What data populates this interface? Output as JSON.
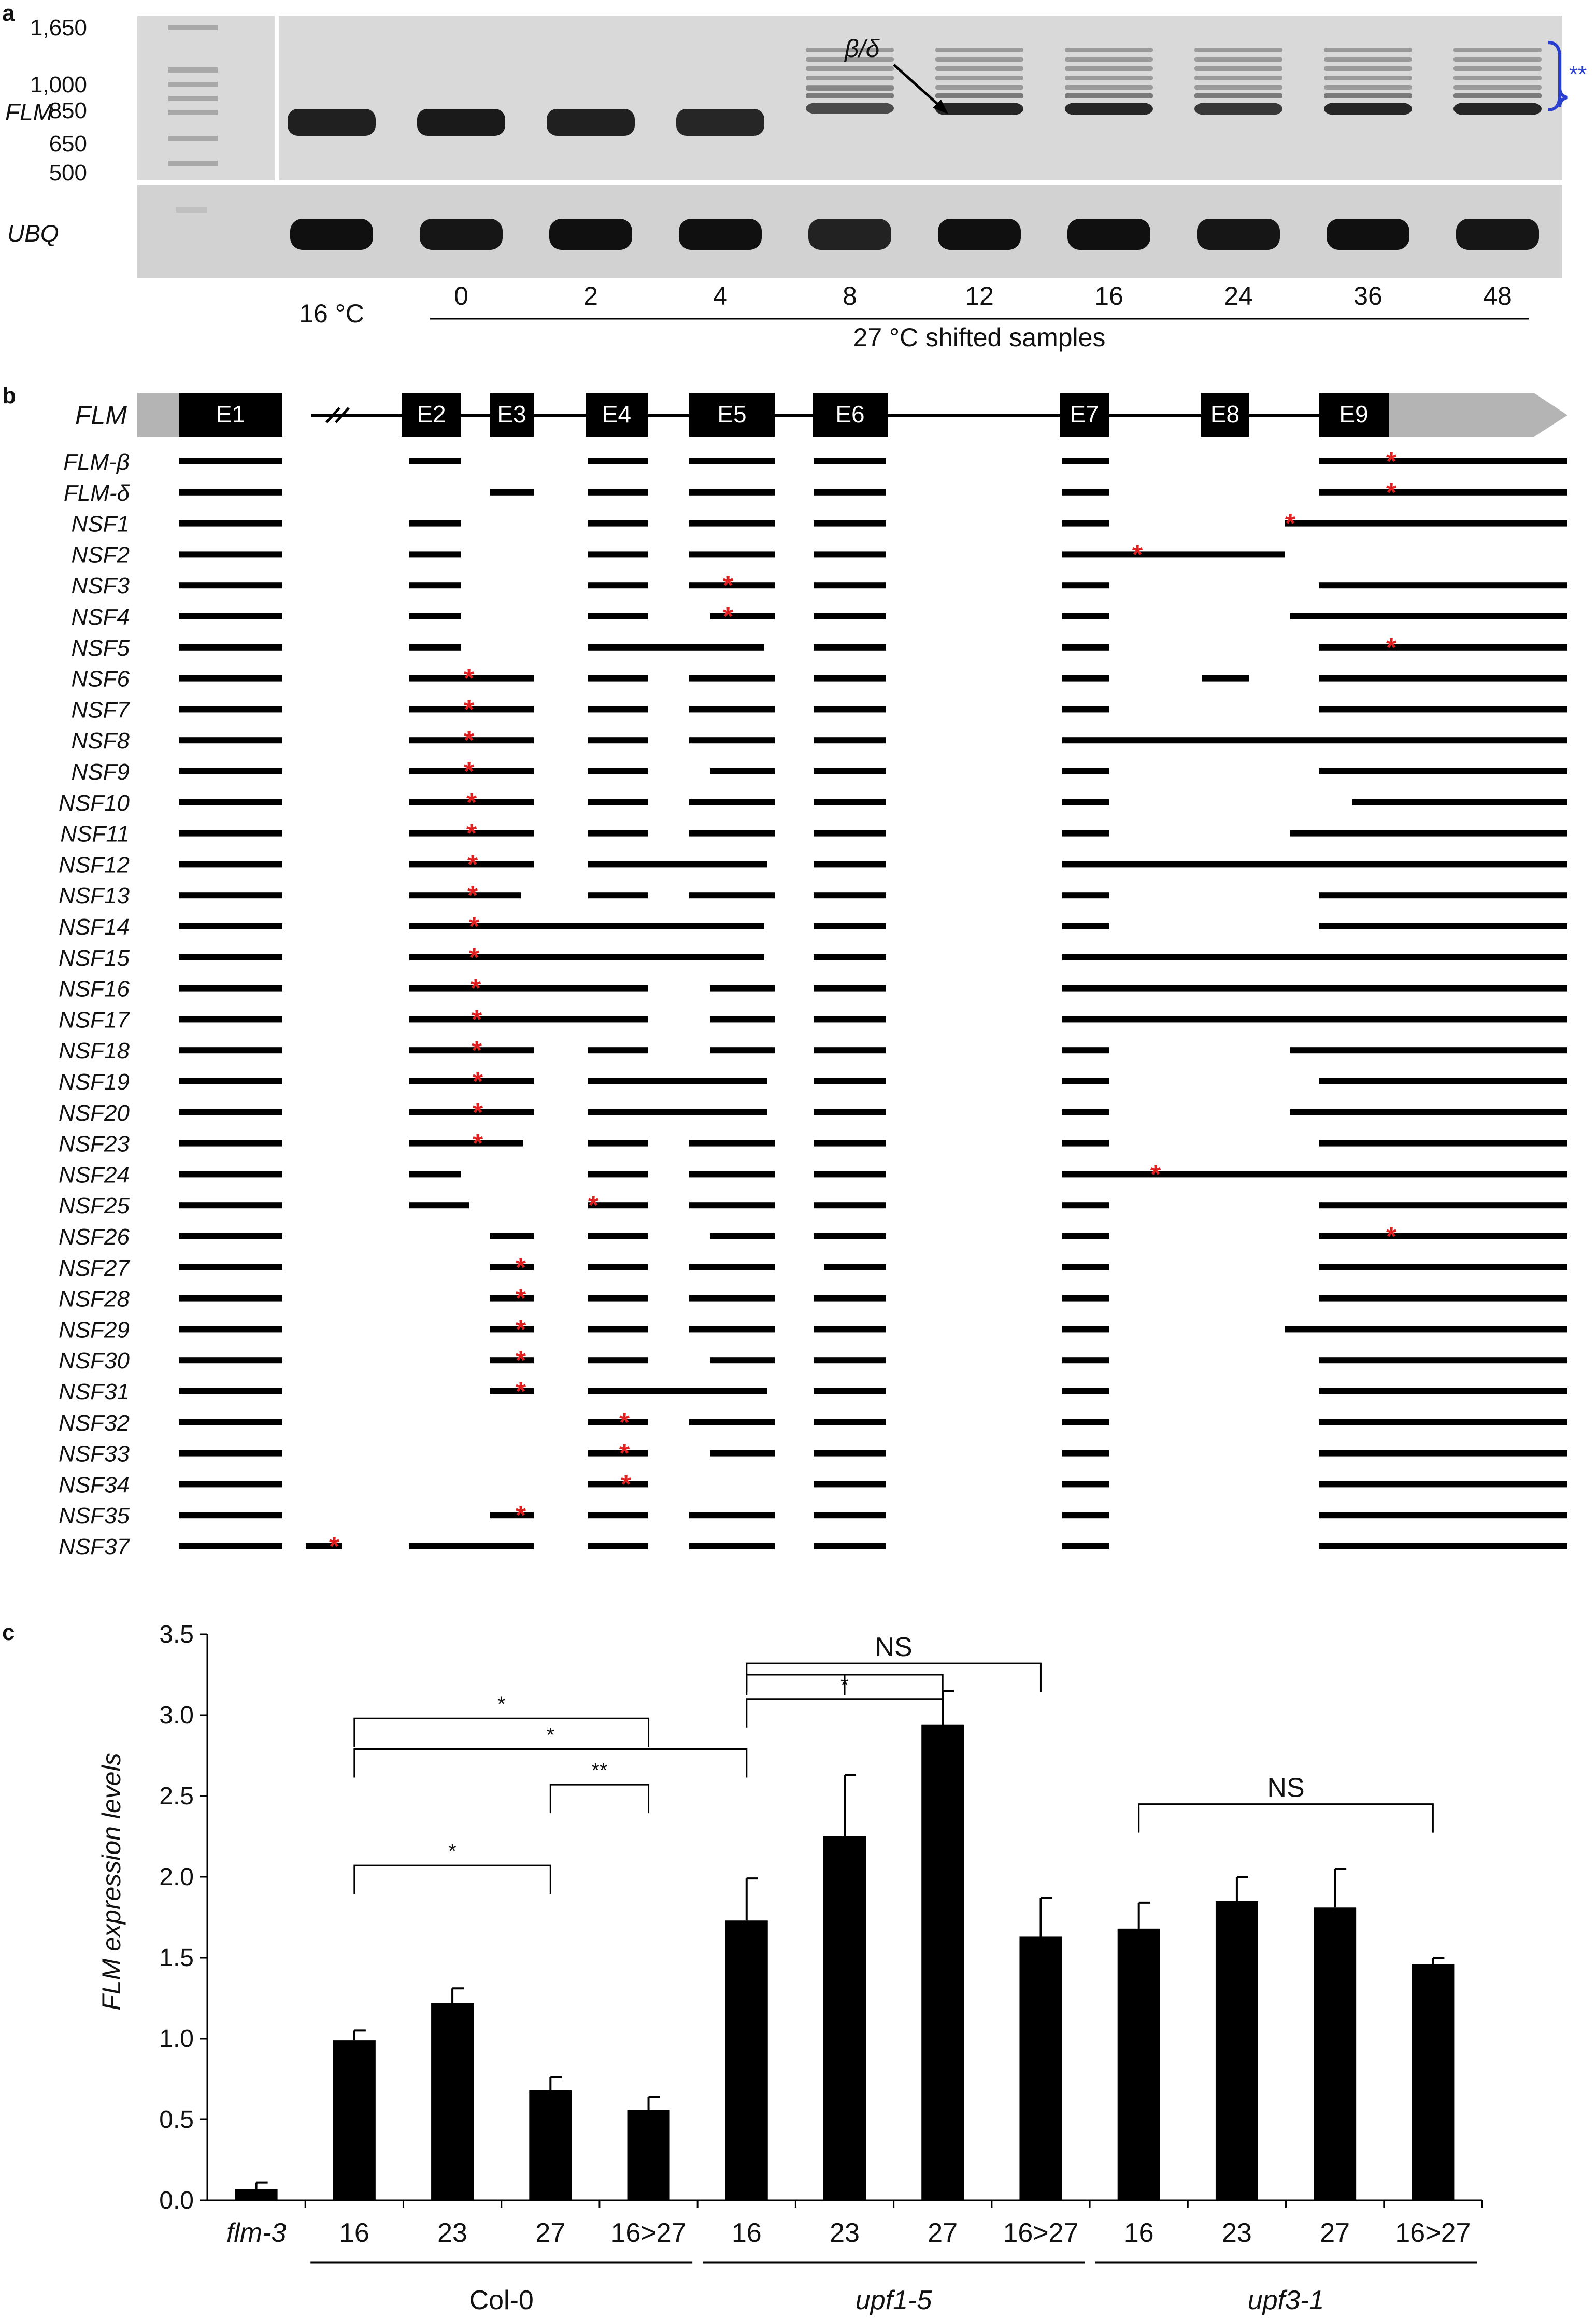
{
  "panel_labels": [
    "a",
    "b",
    "c"
  ],
  "panel_a": {
    "ladder_labels": [
      "1,650",
      "1,000",
      "850",
      "650",
      "500"
    ],
    "gene_top": "FLM",
    "gene_bottom": "UBQ",
    "arrow_label": "β/δ",
    "bracket_label": "**",
    "control_label": "16 °C",
    "lane_labels": [
      "0",
      "2",
      "4",
      "8",
      "12",
      "16",
      "24",
      "36",
      "48"
    ],
    "group_label": "27 °C shifted samples",
    "top_band_intensity": [
      0.9,
      0.95,
      0.9,
      0.85,
      0.55,
      0.85,
      0.85,
      0.7,
      0.85,
      0.85
    ],
    "bottom_band_intensity": [
      0.95,
      0.9,
      0.95,
      0.95,
      0.8,
      0.95,
      0.95,
      0.9,
      0.95,
      0.9
    ]
  },
  "panel_b": {
    "gene_label": "FLM",
    "exons": [
      "E1",
      "E2",
      "E3",
      "E4",
      "E5",
      "E6",
      "E7",
      "E8",
      "E9"
    ],
    "isoforms": [
      "FLM-β",
      "FLM-δ",
      "NSF1",
      "NSF2",
      "NSF3",
      "NSF4",
      "NSF5",
      "NSF6",
      "NSF7",
      "NSF8",
      "NSF9",
      "NSF10",
      "NSF11",
      "NSF12",
      "NSF13",
      "NSF14",
      "NSF15",
      "NSF16",
      "NSF17",
      "NSF18",
      "NSF19",
      "NSF20",
      "NSF23",
      "NSF24",
      "NSF25",
      "NSF26",
      "NSF27",
      "NSF28",
      "NSF29",
      "NSF30",
      "NSF31",
      "NSF32",
      "NSF33",
      "NSF34",
      "NSF35",
      "NSF37"
    ]
  },
  "chart_data": {
    "type": "bar",
    "ylabel": "FLM expression levels",
    "ylim": [
      0,
      3.5
    ],
    "yticks": [
      "0.0",
      "0.5",
      "1.0",
      "1.5",
      "2.0",
      "2.5",
      "3.0",
      "3.5"
    ],
    "categories": [
      "flm-3",
      "16",
      "23",
      "27",
      "16>27",
      "16",
      "23",
      "27",
      "16>27",
      "16",
      "23",
      "27",
      "16>27"
    ],
    "groups": [
      "Col-0",
      "upf1-5",
      "upf3-1"
    ],
    "values": [
      0.07,
      0.99,
      1.22,
      0.68,
      0.56,
      1.73,
      2.25,
      2.94,
      1.63,
      1.68,
      1.85,
      1.81,
      1.46
    ],
    "errors": [
      0.04,
      0.06,
      0.09,
      0.08,
      0.08,
      0.26,
      0.38,
      0.21,
      0.24,
      0.16,
      0.15,
      0.24,
      0.04
    ],
    "significance": [
      "*",
      "**",
      "*",
      "*",
      "NS",
      "*",
      "NS"
    ]
  },
  "colors": {
    "bar": "#000000",
    "star": "#e02020",
    "accent": "#2233cc",
    "utr": "#b4b4b4"
  }
}
